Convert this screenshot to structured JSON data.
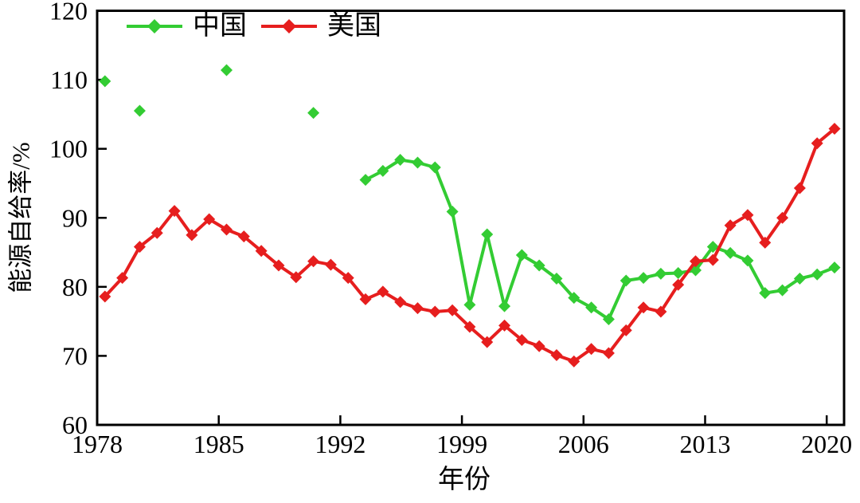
{
  "figure": {
    "background": "#ffffff",
    "frame_color": "#000000"
  },
  "chart_data": {
    "type": "line",
    "title": "",
    "xlabel": "年份",
    "ylabel": "能源自给率/%",
    "xlim": [
      1978,
      2021
    ],
    "ylim": [
      60,
      120
    ],
    "xticks": [
      1978,
      1985,
      1992,
      1999,
      2006,
      2013,
      2020
    ],
    "yticks": [
      60,
      70,
      80,
      90,
      100,
      110,
      120
    ],
    "grid": false,
    "legend_position": "inside-top-left",
    "marker": "diamond",
    "series": [
      {
        "name": "中国",
        "color": "#33CC33",
        "points": [
          [
            1978,
            109.8
          ],
          [
            1980,
            105.5
          ],
          [
            1985,
            111.4
          ],
          [
            1990,
            105.2
          ],
          [
            1993,
            95.5
          ],
          [
            1994,
            96.8
          ],
          [
            1995,
            98.4
          ],
          [
            1996,
            98.0
          ],
          [
            1997,
            97.3
          ],
          [
            1998,
            90.9
          ],
          [
            1999,
            77.4
          ],
          [
            2000,
            87.6
          ],
          [
            2001,
            77.2
          ],
          [
            2002,
            84.6
          ],
          [
            2003,
            83.1
          ],
          [
            2004,
            81.2
          ],
          [
            2005,
            78.4
          ],
          [
            2006,
            77.0
          ],
          [
            2007,
            75.3
          ],
          [
            2008,
            80.9
          ],
          [
            2009,
            81.3
          ],
          [
            2010,
            81.9
          ],
          [
            2011,
            82.0
          ],
          [
            2012,
            82.4
          ],
          [
            2013,
            85.8
          ],
          [
            2014,
            84.9
          ],
          [
            2015,
            83.8
          ],
          [
            2016,
            79.1
          ],
          [
            2017,
            79.5
          ],
          [
            2018,
            81.2
          ],
          [
            2019,
            81.8
          ],
          [
            2020,
            82.8
          ]
        ]
      },
      {
        "name": "美国",
        "color": "#E61E1E",
        "points": [
          [
            1978,
            78.6
          ],
          [
            1979,
            81.3
          ],
          [
            1980,
            85.8
          ],
          [
            1981,
            87.8
          ],
          [
            1982,
            91.0
          ],
          [
            1983,
            87.5
          ],
          [
            1984,
            89.8
          ],
          [
            1985,
            88.3
          ],
          [
            1986,
            87.3
          ],
          [
            1987,
            85.2
          ],
          [
            1988,
            83.1
          ],
          [
            1989,
            81.4
          ],
          [
            1990,
            83.7
          ],
          [
            1991,
            83.2
          ],
          [
            1992,
            81.3
          ],
          [
            1993,
            78.2
          ],
          [
            1994,
            79.3
          ],
          [
            1995,
            77.8
          ],
          [
            1996,
            76.9
          ],
          [
            1997,
            76.4
          ],
          [
            1998,
            76.6
          ],
          [
            1999,
            74.2
          ],
          [
            2000,
            72.0
          ],
          [
            2001,
            74.4
          ],
          [
            2002,
            72.3
          ],
          [
            2003,
            71.4
          ],
          [
            2004,
            70.1
          ],
          [
            2005,
            69.2
          ],
          [
            2006,
            71.0
          ],
          [
            2007,
            70.4
          ],
          [
            2008,
            73.7
          ],
          [
            2009,
            77.0
          ],
          [
            2010,
            76.4
          ],
          [
            2011,
            80.3
          ],
          [
            2012,
            83.7
          ],
          [
            2013,
            83.9
          ],
          [
            2014,
            88.9
          ],
          [
            2015,
            90.4
          ],
          [
            2016,
            86.4
          ],
          [
            2017,
            90.0
          ],
          [
            2018,
            94.3
          ],
          [
            2019,
            100.8
          ],
          [
            2020,
            102.9
          ]
        ]
      }
    ]
  }
}
